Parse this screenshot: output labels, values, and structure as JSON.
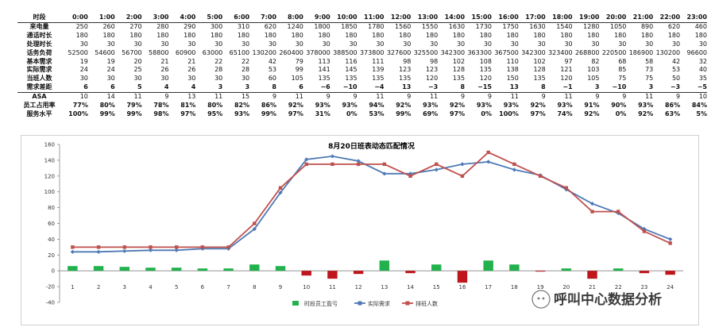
{
  "table": {
    "header_label": "时段",
    "hours": [
      "0:00",
      "1:00",
      "2:00",
      "3:00",
      "4:00",
      "5:00",
      "6:00",
      "7:00",
      "8:00",
      "9:00",
      "10:00",
      "11:00",
      "12:00",
      "13:00",
      "14:00",
      "15:00",
      "16:00",
      "17:00",
      "18:00",
      "19:00",
      "20:00",
      "21:00",
      "22:00",
      "23:00"
    ],
    "rows": [
      {
        "label": "来电量",
        "values": [
          "250",
          "260",
          "270",
          "280",
          "290",
          "300",
          "310",
          "620",
          "1240",
          "1800",
          "1850",
          "1780",
          "1560",
          "1550",
          "1630",
          "1730",
          "1750",
          "1630",
          "1540",
          "1280",
          "1050",
          "890",
          "620",
          "460"
        ],
        "bold": false
      },
      {
        "label": "通话时长",
        "values": [
          "180",
          "180",
          "180",
          "180",
          "180",
          "180",
          "180",
          "180",
          "180",
          "180",
          "180",
          "180",
          "180",
          "180",
          "180",
          "180",
          "180",
          "180",
          "180",
          "180",
          "180",
          "180",
          "180",
          "180"
        ],
        "bold": false
      },
      {
        "label": "处理时长",
        "values": [
          "30",
          "30",
          "30",
          "30",
          "30",
          "30",
          "30",
          "30",
          "30",
          "30",
          "30",
          "30",
          "30",
          "30",
          "30",
          "30",
          "30",
          "30",
          "30",
          "30",
          "30",
          "30",
          "30",
          "30"
        ],
        "bold": false
      },
      {
        "label": "话务负荷",
        "values": [
          "52500",
          "54600",
          "56700",
          "58800",
          "60900",
          "63000",
          "65100",
          "130200",
          "260400",
          "378000",
          "388500",
          "373800",
          "327600",
          "325500",
          "342300",
          "363300",
          "367500",
          "342300",
          "323400",
          "268800",
          "220500",
          "186900",
          "130200",
          "96600"
        ],
        "bold": false
      },
      {
        "label": "基本需求",
        "values": [
          "19",
          "19",
          "20",
          "21",
          "21",
          "22",
          "22",
          "42",
          "79",
          "113",
          "116",
          "111",
          "98",
          "98",
          "102",
          "108",
          "110",
          "102",
          "97",
          "82",
          "68",
          "58",
          "42",
          "32"
        ],
        "bold": false
      },
      {
        "label": "实际需求",
        "values": [
          "24",
          "24",
          "25",
          "26",
          "26",
          "28",
          "28",
          "53",
          "99",
          "141",
          "145",
          "139",
          "123",
          "123",
          "128",
          "135",
          "138",
          "128",
          "121",
          "103",
          "85",
          "73",
          "53",
          "40"
        ],
        "bold": false
      },
      {
        "label": "当班人数",
        "values": [
          "30",
          "30",
          "30",
          "30",
          "30",
          "30",
          "30",
          "60",
          "105",
          "135",
          "135",
          "135",
          "135",
          "120",
          "135",
          "120",
          "150",
          "135",
          "120",
          "105",
          "75",
          "75",
          "50",
          "35"
        ],
        "bold": false
      },
      {
        "label": "需求差距",
        "values": [
          "6",
          "6",
          "5",
          "4",
          "4",
          "3",
          "3",
          "8",
          "6",
          "−6",
          "−10",
          "−4",
          "13",
          "−3",
          "8",
          "−15",
          "13",
          "8",
          "−1",
          "3",
          "−10",
          "3",
          "−3",
          "−5"
        ],
        "bold": true,
        "sep": true
      },
      {
        "label": "ASA",
        "values": [
          "10",
          "14",
          "11",
          "9",
          "13",
          "11",
          "15",
          "9",
          "11",
          "9",
          "9",
          "11",
          "9",
          "11",
          "9",
          "9",
          "11",
          "9",
          "11",
          "9",
          "9",
          "11",
          "9",
          "10"
        ],
        "bold": false
      },
      {
        "label": "员工占用率",
        "values": [
          "77%",
          "80%",
          "79%",
          "78%",
          "81%",
          "80%",
          "82%",
          "86%",
          "92%",
          "93%",
          "93%",
          "94%",
          "92%",
          "93%",
          "92%",
          "93%",
          "93%",
          "92%",
          "93%",
          "91%",
          "90%",
          "93%",
          "86%",
          "84%"
        ],
        "bold": true
      },
      {
        "label": "服务水平",
        "values": [
          "100%",
          "99%",
          "99%",
          "98%",
          "97%",
          "95%",
          "93%",
          "99%",
          "97%",
          "31%",
          "0%",
          "53%",
          "99%",
          "69%",
          "97%",
          "0%",
          "100%",
          "97%",
          "74%",
          "92%",
          "0%",
          "92%",
          "63%",
          "5%"
        ],
        "bold": true
      }
    ]
  },
  "chart_data": {
    "type": "bar",
    "title": "8月20日班表动态匹配情况",
    "categories": [
      "1",
      "2",
      "3",
      "4",
      "5",
      "6",
      "7",
      "8",
      "9",
      "10",
      "11",
      "12",
      "13",
      "14",
      "15",
      "16",
      "17",
      "18",
      "19",
      "20",
      "21",
      "22",
      "23",
      "24"
    ],
    "series": [
      {
        "name": "时段员工盈亏",
        "kind": "bar",
        "values": [
          6,
          6,
          5,
          4,
          4,
          3,
          3,
          8,
          6,
          -6,
          -10,
          -4,
          13,
          -3,
          8,
          -15,
          13,
          8,
          -1,
          3,
          -10,
          3,
          -3,
          -5
        ]
      },
      {
        "name": "实际需求",
        "kind": "line",
        "values": [
          24,
          24,
          25,
          26,
          26,
          28,
          28,
          53,
          99,
          141,
          145,
          139,
          123,
          123,
          128,
          135,
          138,
          128,
          121,
          103,
          85,
          73,
          53,
          40
        ]
      },
      {
        "name": "排班人数",
        "kind": "line",
        "values": [
          30,
          30,
          30,
          30,
          30,
          30,
          30,
          60,
          105,
          135,
          135,
          135,
          135,
          120,
          135,
          120,
          150,
          135,
          120,
          105,
          75,
          75,
          50,
          35
        ]
      }
    ],
    "ylim": [
      -40,
      160
    ],
    "yticks": [
      "160",
      "140",
      "120",
      "100",
      "80",
      "60",
      "40",
      "20",
      "0",
      "-20",
      "-40"
    ],
    "grid": false,
    "legend_position": "bottom",
    "colors": {
      "bar_positive": "#22b14c",
      "bar_negative": "#c0151d",
      "actual": "#4e79b5",
      "scheduled": "#c0504d"
    }
  },
  "watermark": {
    "text": "呼叫中心数据分析"
  }
}
